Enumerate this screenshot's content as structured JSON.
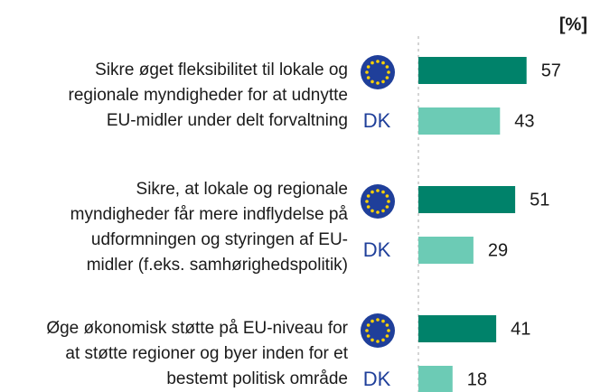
{
  "chart_data": {
    "type": "bar",
    "orientation": "horizontal",
    "unit_label": "[%]",
    "categories": [
      [
        "Sikre øget fleksibilitet til lokale og",
        "regionale myndigheder for at udnytte",
        "EU-midler under delt forvaltning"
      ],
      [
        "Sikre, at lokale og regionale",
        "myndigheder får mere indflydelse på",
        "udformningen og styringen af EU-",
        "midler (f.eks. samhørighedspolitik)"
      ],
      [
        "Øge økonomisk støtte på EU-niveau for",
        "at støtte regioner og byer inden for et",
        "bestemt politisk område"
      ]
    ],
    "series": [
      {
        "color": "#00826a",
        "values": [
          57,
          51,
          41
        ]
      },
      {
        "name": "DK",
        "color": "#6ccbb5",
        "values": [
          43,
          29,
          18
        ]
      }
    ]
  }
}
